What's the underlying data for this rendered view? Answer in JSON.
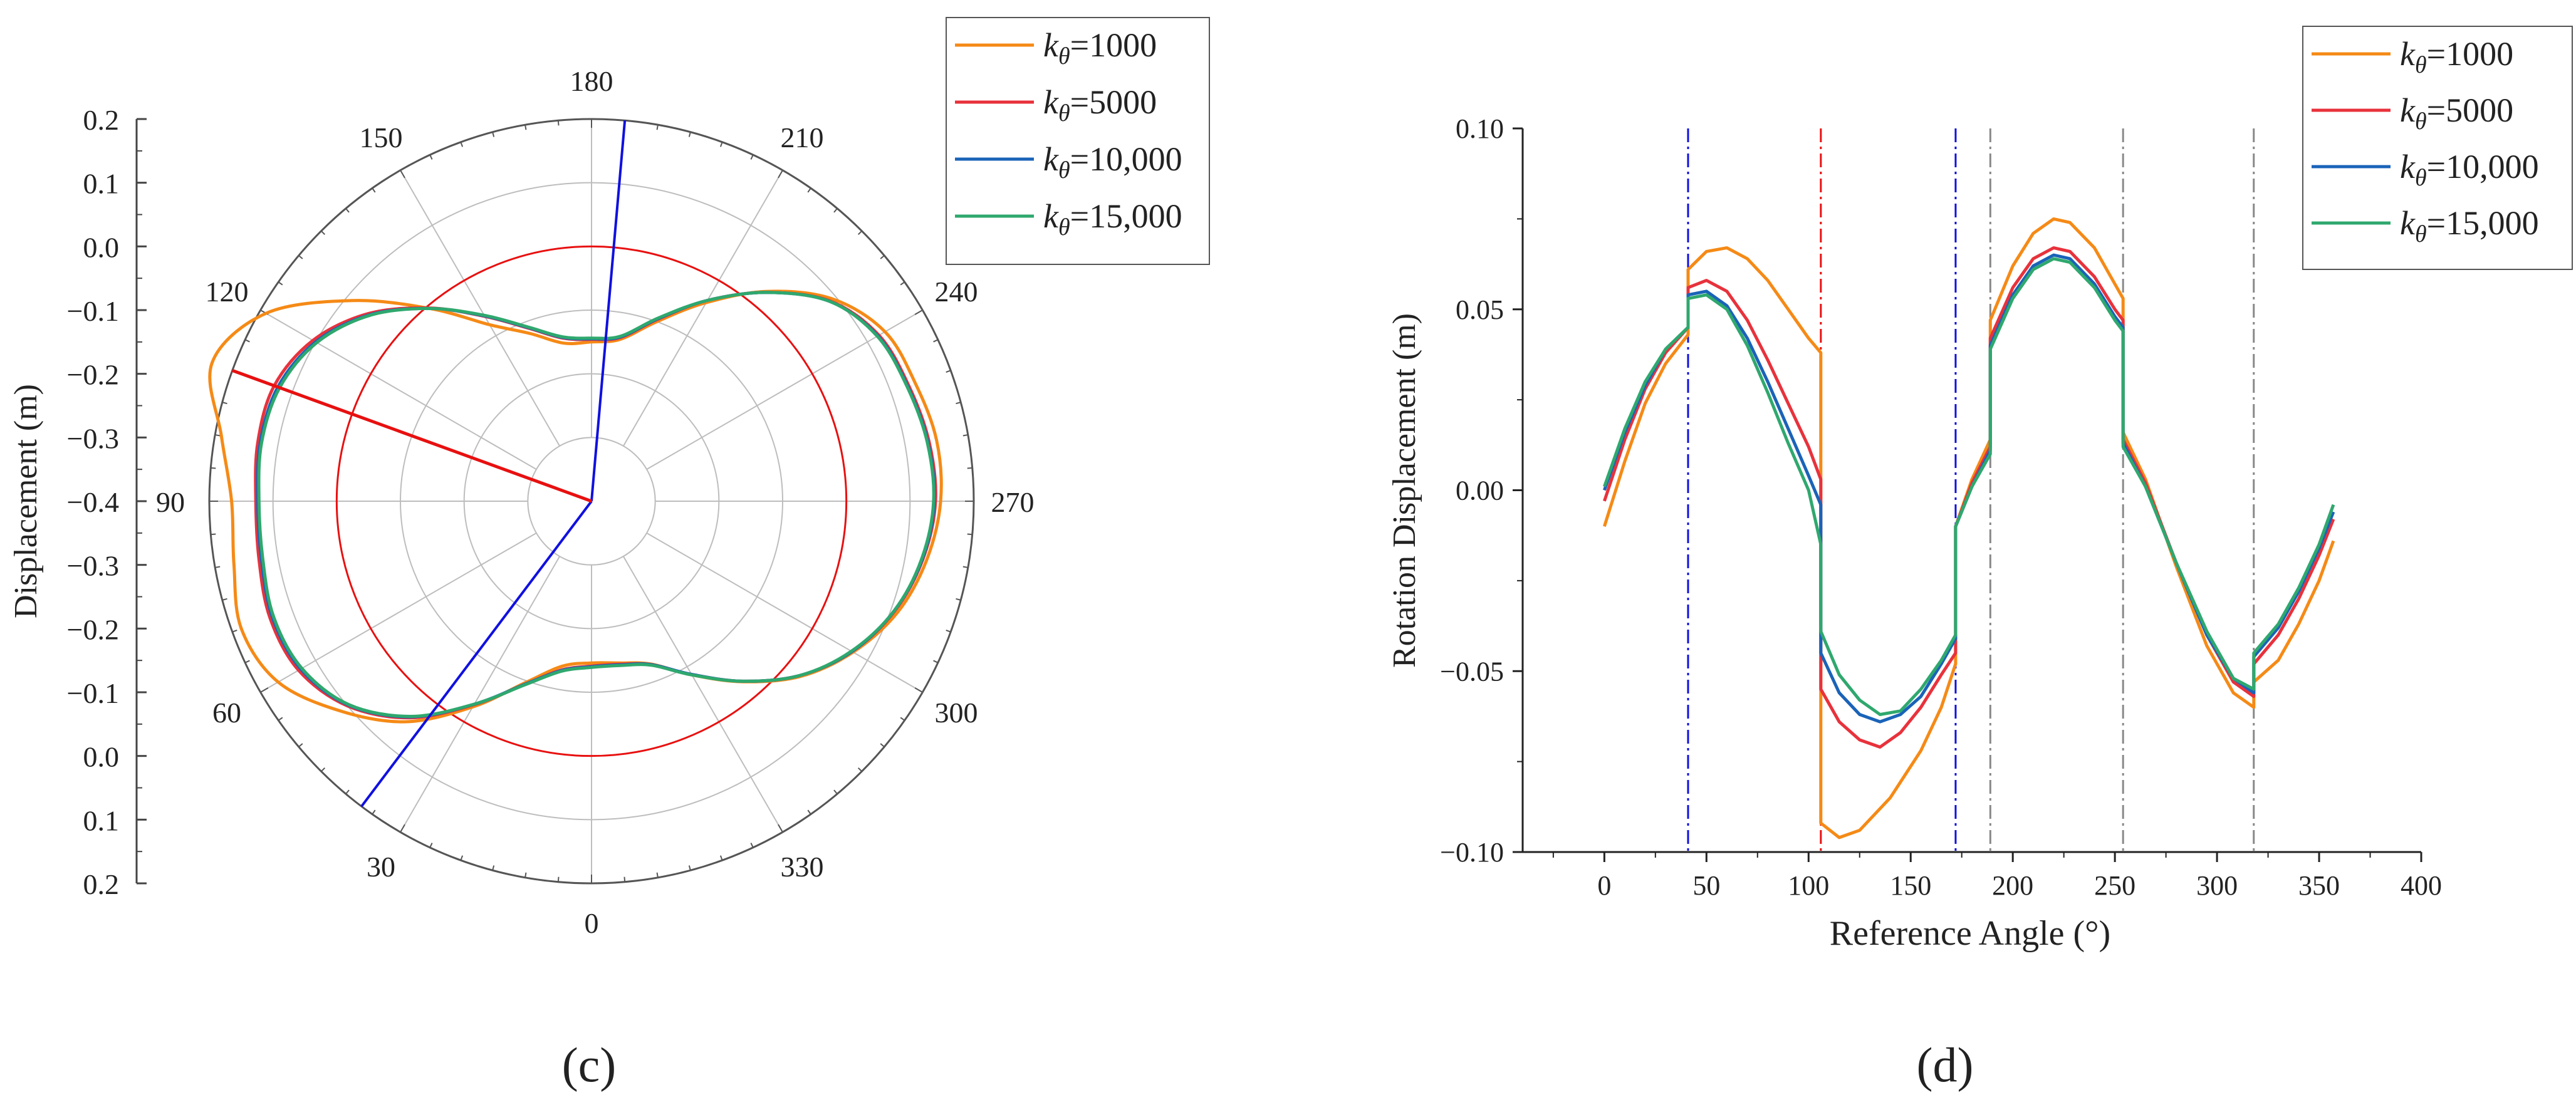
{
  "panels": {
    "c": {
      "caption": "(c)"
    },
    "d": {
      "caption": "(d)"
    }
  },
  "legend_labels": [
    {
      "sub": "θ",
      "value": "=1000"
    },
    {
      "sub": "θ",
      "value": "=5000"
    },
    {
      "sub": "θ",
      "value": "=10,000"
    },
    {
      "sub": "θ",
      "value": "=15,000"
    }
  ],
  "legend_symbol": "k",
  "colors": {
    "s1000": "#F58A16",
    "s5000": "#E8323C",
    "s10000": "#1A63B8",
    "s15000": "#2FA86E",
    "blue_line": "#1010E0",
    "red_line": "#E81010",
    "grey_dash": "#888888"
  },
  "chart_data": [
    {
      "type": "polar-line",
      "panel": "c",
      "ylabel": "Displacement (m)",
      "r_axis_ticks": [
        "0.2",
        "0.1",
        "0.0",
        "-0.1",
        "-0.2",
        "-0.3",
        "-0.4",
        "-0.3",
        "-0.2",
        "-0.1",
        "0.0",
        "0.1",
        "0.2"
      ],
      "r_range": [
        -0.4,
        0.2
      ],
      "angle_labels": [
        "0",
        "30",
        "60",
        "90",
        "120",
        "150",
        "180",
        "210",
        "240",
        "270",
        "300",
        "330"
      ],
      "angular_grid_step_deg": 30,
      "reference_circle_radius": 0.0,
      "radial_line_1_angles_deg": [
        185,
        37
      ],
      "radial_line_1_color": "blue",
      "radial_line_2_angle_deg": 110,
      "radial_line_2_color": "red",
      "series": [
        {
          "name": "kθ=1000",
          "color": "#F58A16",
          "theta": [
            0,
            10,
            20,
            30,
            40,
            50,
            60,
            70,
            80,
            90,
            100,
            110,
            120,
            130,
            140,
            150,
            160,
            170,
            180,
            190,
            200,
            210,
            220,
            230,
            240,
            250,
            260,
            270,
            280,
            290,
            300,
            310,
            320,
            330,
            340,
            350
          ],
          "r": [
            -0.146,
            -0.137,
            -0.097,
            -0.027,
            0.052,
            0.113,
            0.168,
            0.185,
            0.17,
            0.165,
            0.19,
            0.234,
            0.19,
            0.09,
            -0.005,
            -0.08,
            -0.12,
            -0.148,
            -0.15,
            -0.142,
            -0.1,
            -0.04,
            0.03,
            0.094,
            0.132,
            0.141,
            0.15,
            0.148,
            0.134,
            0.111,
            0.074,
            0.028,
            -0.03,
            -0.085,
            -0.128,
            -0.142
          ]
        },
        {
          "name": "kθ=5000",
          "color": "#E8323C",
          "theta": [
            0,
            10,
            20,
            30,
            40,
            50,
            60,
            70,
            80,
            90,
            100,
            110,
            120,
            130,
            140,
            150,
            160,
            170,
            180,
            190,
            200,
            210,
            220,
            230,
            240,
            250,
            260,
            270,
            280,
            290,
            300,
            310,
            320,
            330,
            340,
            350
          ],
          "r": [
            -0.141,
            -0.131,
            -0.094,
            -0.031,
            0.044,
            0.1,
            0.131,
            0.137,
            0.13,
            0.127,
            0.132,
            0.13,
            0.105,
            0.058,
            -0.004,
            -0.065,
            -0.111,
            -0.14,
            -0.146,
            -0.139,
            -0.096,
            -0.036,
            0.028,
            0.089,
            0.121,
            0.13,
            0.138,
            0.14,
            0.128,
            0.106,
            0.072,
            0.026,
            -0.031,
            -0.086,
            -0.127,
            -0.14
          ]
        },
        {
          "name": "kθ=10,000",
          "color": "#1A63B8",
          "theta": [
            0,
            10,
            20,
            30,
            40,
            50,
            60,
            70,
            80,
            90,
            100,
            110,
            120,
            130,
            140,
            150,
            160,
            170,
            180,
            190,
            200,
            210,
            220,
            230,
            240,
            250,
            260,
            270,
            280,
            290,
            300,
            310,
            320,
            330,
            340,
            350
          ],
          "r": [
            -0.14,
            -0.13,
            -0.094,
            -0.032,
            0.042,
            0.098,
            0.127,
            0.133,
            0.126,
            0.124,
            0.128,
            0.124,
            0.1,
            0.055,
            -0.005,
            -0.064,
            -0.11,
            -0.139,
            -0.145,
            -0.138,
            -0.095,
            -0.036,
            0.028,
            0.088,
            0.119,
            0.128,
            0.136,
            0.138,
            0.127,
            0.105,
            0.072,
            0.026,
            -0.031,
            -0.086,
            -0.127,
            -0.139
          ]
        },
        {
          "name": "kθ=15,000",
          "color": "#2FA86E",
          "theta": [
            0,
            10,
            20,
            30,
            40,
            50,
            60,
            70,
            80,
            90,
            100,
            110,
            120,
            130,
            140,
            150,
            160,
            170,
            180,
            190,
            200,
            210,
            220,
            230,
            240,
            250,
            260,
            270,
            280,
            290,
            300,
            310,
            320,
            330,
            340,
            350
          ],
          "r": [
            -0.139,
            -0.129,
            -0.093,
            -0.032,
            0.041,
            0.097,
            0.125,
            0.131,
            0.124,
            0.122,
            0.126,
            0.121,
            0.098,
            0.054,
            -0.005,
            -0.063,
            -0.109,
            -0.138,
            -0.144,
            -0.137,
            -0.094,
            -0.036,
            0.028,
            0.088,
            0.118,
            0.127,
            0.135,
            0.137,
            0.126,
            0.105,
            0.071,
            0.026,
            -0.031,
            -0.085,
            -0.126,
            -0.138
          ]
        }
      ]
    },
    {
      "type": "line",
      "panel": "d",
      "xlabel": "Reference Angle (°)",
      "ylabel": "Rotation Displacement (m)",
      "xlim": [
        -40,
        400
      ],
      "ylim": [
        -0.1,
        0.1
      ],
      "xticks": [
        0,
        50,
        100,
        150,
        200,
        250,
        300,
        350,
        400
      ],
      "yticks": [
        -0.1,
        -0.05,
        0.0,
        0.05,
        0.1
      ],
      "xtick_labels": [
        "0",
        "50",
        "100",
        "150",
        "200",
        "250",
        "300",
        "350",
        "400"
      ],
      "ytick_labels": [
        "−0.10",
        "−0.05",
        "0.00",
        "0.05",
        "0.10"
      ],
      "vertical_lines": [
        {
          "x": 41,
          "color": "blue"
        },
        {
          "x": 106,
          "color": "red"
        },
        {
          "x": 172,
          "color": "blue"
        },
        {
          "x": 189,
          "color": "grey"
        },
        {
          "x": 254,
          "color": "grey"
        },
        {
          "x": 318,
          "color": "grey"
        }
      ],
      "series": [
        {
          "name": "kθ=1000",
          "color": "#F58A16",
          "segments": [
            {
              "x": [
                0,
                10,
                20,
                30,
                41
              ],
              "y": [
                -0.01,
                0.008,
                0.024,
                0.035,
                0.043
              ]
            },
            {
              "x": [
                41,
                50,
                60,
                70,
                80,
                90,
                100,
                106
              ],
              "y": [
                0.061,
                0.066,
                0.067,
                0.064,
                0.058,
                0.05,
                0.042,
                0.038
              ]
            },
            {
              "x": [
                106,
                115,
                125,
                140,
                155,
                165,
                172
              ],
              "y": [
                -0.092,
                -0.096,
                -0.094,
                -0.085,
                -0.072,
                -0.06,
                -0.048
              ]
            },
            {
              "x": [
                172,
                180,
                189
              ],
              "y": [
                -0.01,
                0.003,
                0.014
              ]
            },
            {
              "x": [
                189,
                200,
                210,
                220,
                228,
                240,
                250,
                254
              ],
              "y": [
                0.047,
                0.062,
                0.071,
                0.075,
                0.074,
                0.067,
                0.057,
                0.053
              ]
            },
            {
              "x": [
                254,
                265,
                280,
                295,
                308,
                318
              ],
              "y": [
                0.016,
                0.003,
                -0.021,
                -0.043,
                -0.056,
                -0.06
              ]
            },
            {
              "x": [
                318,
                330,
                340,
                350,
                357
              ],
              "y": [
                -0.053,
                -0.047,
                -0.037,
                -0.025,
                -0.014
              ]
            }
          ]
        },
        {
          "name": "kθ=5000",
          "color": "#E8323C",
          "segments": [
            {
              "x": [
                0,
                10,
                20,
                30,
                41
              ],
              "y": [
                -0.003,
                0.014,
                0.028,
                0.038,
                0.045
              ]
            },
            {
              "x": [
                41,
                50,
                60,
                70,
                80,
                90,
                100,
                106
              ],
              "y": [
                0.056,
                0.058,
                0.055,
                0.047,
                0.036,
                0.024,
                0.012,
                0.003
              ]
            },
            {
              "x": [
                106,
                115,
                125,
                135,
                145,
                155,
                165,
                172
              ],
              "y": [
                -0.055,
                -0.064,
                -0.069,
                -0.071,
                -0.067,
                -0.06,
                -0.051,
                -0.045
              ]
            },
            {
              "x": [
                172,
                180,
                189
              ],
              "y": [
                -0.01,
                0.002,
                0.012
              ]
            },
            {
              "x": [
                189,
                200,
                210,
                220,
                228,
                240,
                250,
                254
              ],
              "y": [
                0.042,
                0.056,
                0.064,
                0.067,
                0.066,
                0.059,
                0.05,
                0.047
              ]
            },
            {
              "x": [
                254,
                265,
                280,
                295,
                308,
                318
              ],
              "y": [
                0.014,
                0.002,
                -0.02,
                -0.04,
                -0.053,
                -0.057
              ]
            },
            {
              "x": [
                318,
                330,
                340,
                350,
                357
              ],
              "y": [
                -0.048,
                -0.04,
                -0.03,
                -0.018,
                -0.008
              ]
            }
          ]
        },
        {
          "name": "kθ=10,000",
          "color": "#1A63B8",
          "segments": [
            {
              "x": [
                0,
                10,
                20,
                30,
                41
              ],
              "y": [
                -0.0,
                0.016,
                0.029,
                0.039,
                0.045
              ]
            },
            {
              "x": [
                41,
                50,
                60,
                70,
                80,
                90,
                100,
                106
              ],
              "y": [
                0.054,
                0.055,
                0.051,
                0.042,
                0.03,
                0.017,
                0.004,
                -0.004
              ]
            },
            {
              "x": [
                106,
                115,
                125,
                135,
                145,
                155,
                165,
                172
              ],
              "y": [
                -0.045,
                -0.056,
                -0.062,
                -0.064,
                -0.062,
                -0.057,
                -0.048,
                -0.041
              ]
            },
            {
              "x": [
                172,
                180,
                189
              ],
              "y": [
                -0.01,
                0.001,
                0.011
              ]
            },
            {
              "x": [
                189,
                200,
                210,
                220,
                228,
                240,
                250,
                254
              ],
              "y": [
                0.04,
                0.054,
                0.062,
                0.065,
                0.064,
                0.057,
                0.048,
                0.045
              ]
            },
            {
              "x": [
                254,
                265,
                280,
                295,
                308,
                318
              ],
              "y": [
                0.013,
                0.001,
                -0.02,
                -0.04,
                -0.052,
                -0.056
              ]
            },
            {
              "x": [
                318,
                330,
                340,
                350,
                357
              ],
              "y": [
                -0.046,
                -0.038,
                -0.028,
                -0.016,
                -0.006
              ]
            }
          ]
        },
        {
          "name": "kθ=15,000",
          "color": "#2FA86E",
          "segments": [
            {
              "x": [
                0,
                10,
                20,
                30,
                41
              ],
              "y": [
                0.001,
                0.017,
                0.03,
                0.039,
                0.045
              ]
            },
            {
              "x": [
                41,
                50,
                60,
                70,
                80,
                90,
                100,
                106
              ],
              "y": [
                0.053,
                0.054,
                0.05,
                0.04,
                0.027,
                0.013,
                0.0,
                -0.015
              ]
            },
            {
              "x": [
                106,
                115,
                125,
                135,
                145,
                155,
                165,
                172
              ],
              "y": [
                -0.039,
                -0.051,
                -0.058,
                -0.062,
                -0.061,
                -0.055,
                -0.047,
                -0.04
              ]
            },
            {
              "x": [
                172,
                180,
                189
              ],
              "y": [
                -0.01,
                0.001,
                0.01
              ]
            },
            {
              "x": [
                189,
                200,
                210,
                220,
                228,
                240,
                250,
                254
              ],
              "y": [
                0.039,
                0.053,
                0.061,
                0.064,
                0.063,
                0.056,
                0.047,
                0.044
              ]
            },
            {
              "x": [
                254,
                265,
                280,
                295,
                308,
                318
              ],
              "y": [
                0.012,
                0.001,
                -0.02,
                -0.039,
                -0.052,
                -0.055
              ]
            },
            {
              "x": [
                318,
                330,
                340,
                350,
                357
              ],
              "y": [
                -0.045,
                -0.037,
                -0.027,
                -0.015,
                -0.004
              ]
            }
          ]
        }
      ]
    }
  ]
}
